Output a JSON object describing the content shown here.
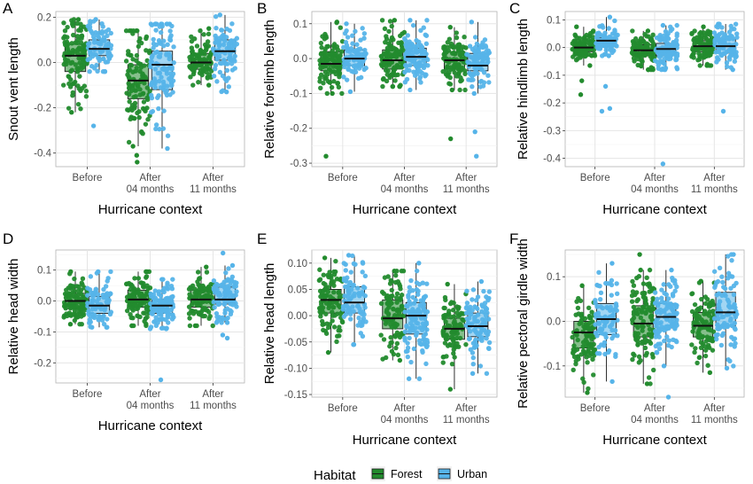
{
  "colors": {
    "forest": "#238b2e",
    "urban": "#56b4e9",
    "grid_major": "#e5e5e5",
    "grid_minor": "#f2f2f2",
    "box_edge": "#1a1a1a"
  },
  "legend": {
    "title": "Habitat",
    "items": [
      {
        "label": "Forest",
        "color": "#238b2e"
      },
      {
        "label": "Urban",
        "color": "#56b4e9"
      }
    ]
  },
  "chart_data": [
    {
      "type": "boxplot",
      "panel": "A",
      "ylabel": "Snout vent length",
      "xlabel": "Hurricane context",
      "categories": [
        [
          "Before"
        ],
        [
          "After",
          "04 months"
        ],
        [
          "After",
          "11 months"
        ]
      ],
      "ylim": [
        -0.46,
        0.225
      ],
      "yticks": [
        0.2,
        0.0,
        -0.2,
        -0.4
      ],
      "ytick_labels": [
        "0.2",
        "0.0",
        "-0.2",
        "-0.4"
      ],
      "grid": true,
      "series": [
        {
          "name": "Forest",
          "boxes": [
            {
              "min": -0.22,
              "q1": -0.04,
              "median": 0.03,
              "q3": 0.08,
              "max": 0.19,
              "n": 110,
              "outliers": []
            },
            {
              "min": -0.37,
              "q1": -0.16,
              "median": -0.08,
              "q3": -0.01,
              "max": 0.14,
              "n": 110,
              "outliers": [
                -0.44,
                -0.41
              ]
            },
            {
              "min": -0.1,
              "q1": -0.03,
              "median": 0.0,
              "q3": 0.04,
              "max": 0.15,
              "n": 100,
              "outliers": []
            }
          ]
        },
        {
          "name": "Urban",
          "boxes": [
            {
              "min": -0.04,
              "q1": 0.03,
              "median": 0.06,
              "q3": 0.1,
              "max": 0.19,
              "n": 80,
              "outliers": [
                -0.28
              ]
            },
            {
              "min": -0.38,
              "q1": -0.12,
              "median": -0.01,
              "q3": 0.05,
              "max": 0.17,
              "n": 110,
              "outliers": []
            },
            {
              "min": -0.13,
              "q1": 0.01,
              "median": 0.05,
              "q3": 0.1,
              "max": 0.21,
              "n": 90,
              "outliers": []
            }
          ]
        }
      ]
    },
    {
      "type": "boxplot",
      "panel": "B",
      "ylabel": "Relative forelimb length",
      "xlabel": "Hurricane context",
      "categories": [
        [
          "Before"
        ],
        [
          "After",
          "04 months"
        ],
        [
          "After",
          "11 months"
        ]
      ],
      "ylim": [
        -0.31,
        0.135
      ],
      "yticks": [
        0.1,
        0.0,
        -0.1,
        -0.2,
        -0.3
      ],
      "ytick_labels": [
        "0.1",
        "0.0",
        "-0.1",
        "-0.2",
        "-0.3"
      ],
      "grid": true,
      "series": [
        {
          "name": "Forest",
          "boxes": [
            {
              "min": -0.1,
              "q1": -0.035,
              "median": -0.015,
              "q3": 0.02,
              "max": 0.105,
              "n": 110,
              "outliers": [
                -0.28
              ]
            },
            {
              "min": -0.08,
              "q1": -0.03,
              "median": -0.005,
              "q3": 0.025,
              "max": 0.11,
              "n": 110,
              "outliers": []
            },
            {
              "min": -0.09,
              "q1": -0.03,
              "median": -0.005,
              "q3": 0.02,
              "max": 0.09,
              "n": 100,
              "outliers": [
                -0.23
              ]
            }
          ]
        },
        {
          "name": "Urban",
          "boxes": [
            {
              "min": -0.095,
              "q1": -0.02,
              "median": 0.0,
              "q3": 0.025,
              "max": 0.1,
              "n": 80,
              "outliers": []
            },
            {
              "min": -0.09,
              "q1": -0.02,
              "median": 0.005,
              "q3": 0.03,
              "max": 0.11,
              "n": 110,
              "outliers": []
            },
            {
              "min": -0.1,
              "q1": -0.035,
              "median": -0.02,
              "q3": 0.015,
              "max": 0.105,
              "n": 90,
              "outliers": [
                -0.21,
                -0.28
              ]
            }
          ]
        }
      ]
    },
    {
      "type": "boxplot",
      "panel": "C",
      "ylabel": "Relative hindlimb length",
      "xlabel": "Hurricane context",
      "categories": [
        [
          "Before"
        ],
        [
          "After",
          "04 months"
        ],
        [
          "After",
          "11 months"
        ]
      ],
      "ylim": [
        -0.43,
        0.13
      ],
      "yticks": [
        0.1,
        0.0,
        -0.1,
        -0.2,
        -0.3,
        -0.4
      ],
      "ytick_labels": [
        "0.1",
        "0.0",
        "-0.1",
        "-0.2",
        "-0.3",
        "-0.4"
      ],
      "grid": true,
      "series": [
        {
          "name": "Forest",
          "boxes": [
            {
              "min": -0.065,
              "q1": -0.015,
              "median": 0.0,
              "q3": 0.015,
              "max": 0.075,
              "n": 110,
              "outliers": [
                -0.17,
                -0.12
              ]
            },
            {
              "min": -0.08,
              "q1": -0.03,
              "median": -0.01,
              "q3": 0.01,
              "max": 0.06,
              "n": 110,
              "outliers": []
            },
            {
              "min": -0.065,
              "q1": -0.015,
              "median": 0.005,
              "q3": 0.025,
              "max": 0.075,
              "n": 100,
              "outliers": []
            }
          ]
        },
        {
          "name": "Urban",
          "boxes": [
            {
              "min": -0.03,
              "q1": 0.005,
              "median": 0.025,
              "q3": 0.035,
              "max": 0.11,
              "n": 80,
              "outliers": [
                -0.22,
                -0.23,
                -0.14
              ]
            },
            {
              "min": -0.08,
              "q1": -0.03,
              "median": -0.005,
              "q3": 0.015,
              "max": 0.08,
              "n": 110,
              "outliers": [
                -0.42
              ]
            },
            {
              "min": -0.08,
              "q1": -0.02,
              "median": 0.005,
              "q3": 0.03,
              "max": 0.085,
              "n": 90,
              "outliers": [
                -0.23
              ]
            }
          ]
        }
      ]
    },
    {
      "type": "boxplot",
      "panel": "D",
      "ylabel": "Relative head width",
      "xlabel": "Hurricane context",
      "categories": [
        [
          "Before"
        ],
        [
          "After",
          "04 months"
        ],
        [
          "After",
          "11 months"
        ]
      ],
      "ylim": [
        -0.265,
        0.165
      ],
      "yticks": [
        0.1,
        0.0,
        -0.1,
        -0.2
      ],
      "ytick_labels": [
        "0.1",
        "0.0",
        "-0.1",
        "-0.2"
      ],
      "grid": true,
      "series": [
        {
          "name": "Forest",
          "boxes": [
            {
              "min": -0.075,
              "q1": -0.025,
              "median": 0.0,
              "q3": 0.025,
              "max": 0.095,
              "n": 110,
              "outliers": []
            },
            {
              "min": -0.08,
              "q1": -0.02,
              "median": 0.005,
              "q3": 0.035,
              "max": 0.095,
              "n": 110,
              "outliers": []
            },
            {
              "min": -0.08,
              "q1": -0.02,
              "median": 0.005,
              "q3": 0.035,
              "max": 0.11,
              "n": 100,
              "outliers": []
            }
          ]
        },
        {
          "name": "Urban",
          "boxes": [
            {
              "min": -0.085,
              "q1": -0.04,
              "median": -0.015,
              "q3": 0.015,
              "max": 0.095,
              "n": 80,
              "outliers": []
            },
            {
              "min": -0.09,
              "q1": -0.04,
              "median": -0.015,
              "q3": 0.005,
              "max": 0.07,
              "n": 110,
              "outliers": [
                -0.255
              ]
            },
            {
              "min": -0.07,
              "q1": -0.01,
              "median": 0.005,
              "q3": 0.045,
              "max": 0.115,
              "n": 90,
              "outliers": [
                0.155,
                -0.11,
                -0.12
              ]
            }
          ]
        }
      ]
    },
    {
      "type": "boxplot",
      "panel": "E",
      "ylabel": "Relative head length",
      "xlabel": "Hurricane context",
      "categories": [
        [
          "Before"
        ],
        [
          "After",
          "04 months"
        ],
        [
          "After",
          "11 months"
        ]
      ],
      "ylim": [
        -0.155,
        0.125
      ],
      "yticks": [
        0.1,
        0.05,
        0.0,
        -0.05,
        -0.1,
        -0.15
      ],
      "ytick_labels": [
        "0.10",
        "0.05",
        "0.00",
        "-0.05",
        "-0.10",
        "-0.15"
      ],
      "grid": true,
      "series": [
        {
          "name": "Forest",
          "boxes": [
            {
              "min": -0.07,
              "q1": 0.005,
              "median": 0.03,
              "q3": 0.05,
              "max": 0.11,
              "n": 100,
              "outliers": []
            },
            {
              "min": -0.085,
              "q1": -0.025,
              "median": -0.005,
              "q3": 0.03,
              "max": 0.085,
              "n": 100,
              "outliers": []
            },
            {
              "min": -0.14,
              "q1": -0.045,
              "median": -0.025,
              "q3": -0.005,
              "max": 0.06,
              "n": 90,
              "outliers": []
            }
          ]
        },
        {
          "name": "Urban",
          "boxes": [
            {
              "min": -0.055,
              "q1": 0.005,
              "median": 0.025,
              "q3": 0.055,
              "max": 0.115,
              "n": 80,
              "outliers": []
            },
            {
              "min": -0.12,
              "q1": -0.035,
              "median": 0.0,
              "q3": 0.025,
              "max": 0.1,
              "n": 110,
              "outliers": []
            },
            {
              "min": -0.11,
              "q1": -0.04,
              "median": -0.02,
              "q3": 0.005,
              "max": 0.065,
              "n": 100,
              "outliers": []
            }
          ]
        }
      ]
    },
    {
      "type": "boxplot",
      "panel": "F",
      "ylabel": "Relative pectoral girdle width",
      "xlabel": "Hurricane context",
      "categories": [
        [
          "Before"
        ],
        [
          "After",
          "04 months"
        ],
        [
          "After",
          "11 months"
        ]
      ],
      "ylim": [
        -0.17,
        0.16
      ],
      "yticks": [
        0.1,
        0.0,
        -0.1
      ],
      "ytick_labels": [
        "0.1",
        "0.0",
        "-0.1"
      ],
      "grid": true,
      "series": [
        {
          "name": "Forest",
          "boxes": [
            {
              "min": -0.16,
              "q1": -0.06,
              "median": -0.025,
              "q3": 0.0,
              "max": 0.08,
              "n": 100,
              "outliers": []
            },
            {
              "min": -0.14,
              "q1": -0.035,
              "median": -0.005,
              "q3": 0.035,
              "max": 0.115,
              "n": 110,
              "outliers": [
                0.15
              ]
            },
            {
              "min": -0.115,
              "q1": -0.035,
              "median": -0.01,
              "q3": 0.02,
              "max": 0.09,
              "n": 100,
              "outliers": []
            }
          ]
        },
        {
          "name": "Urban",
          "boxes": [
            {
              "min": -0.135,
              "q1": -0.03,
              "median": 0.005,
              "q3": 0.04,
              "max": 0.13,
              "n": 80,
              "outliers": []
            },
            {
              "min": -0.1,
              "q1": -0.015,
              "median": 0.01,
              "q3": 0.04,
              "max": 0.115,
              "n": 110,
              "outliers": [
                -0.17
              ]
            },
            {
              "min": -0.105,
              "q1": -0.01,
              "median": 0.02,
              "q3": 0.065,
              "max": 0.15,
              "n": 100,
              "outliers": []
            }
          ]
        }
      ]
    }
  ]
}
